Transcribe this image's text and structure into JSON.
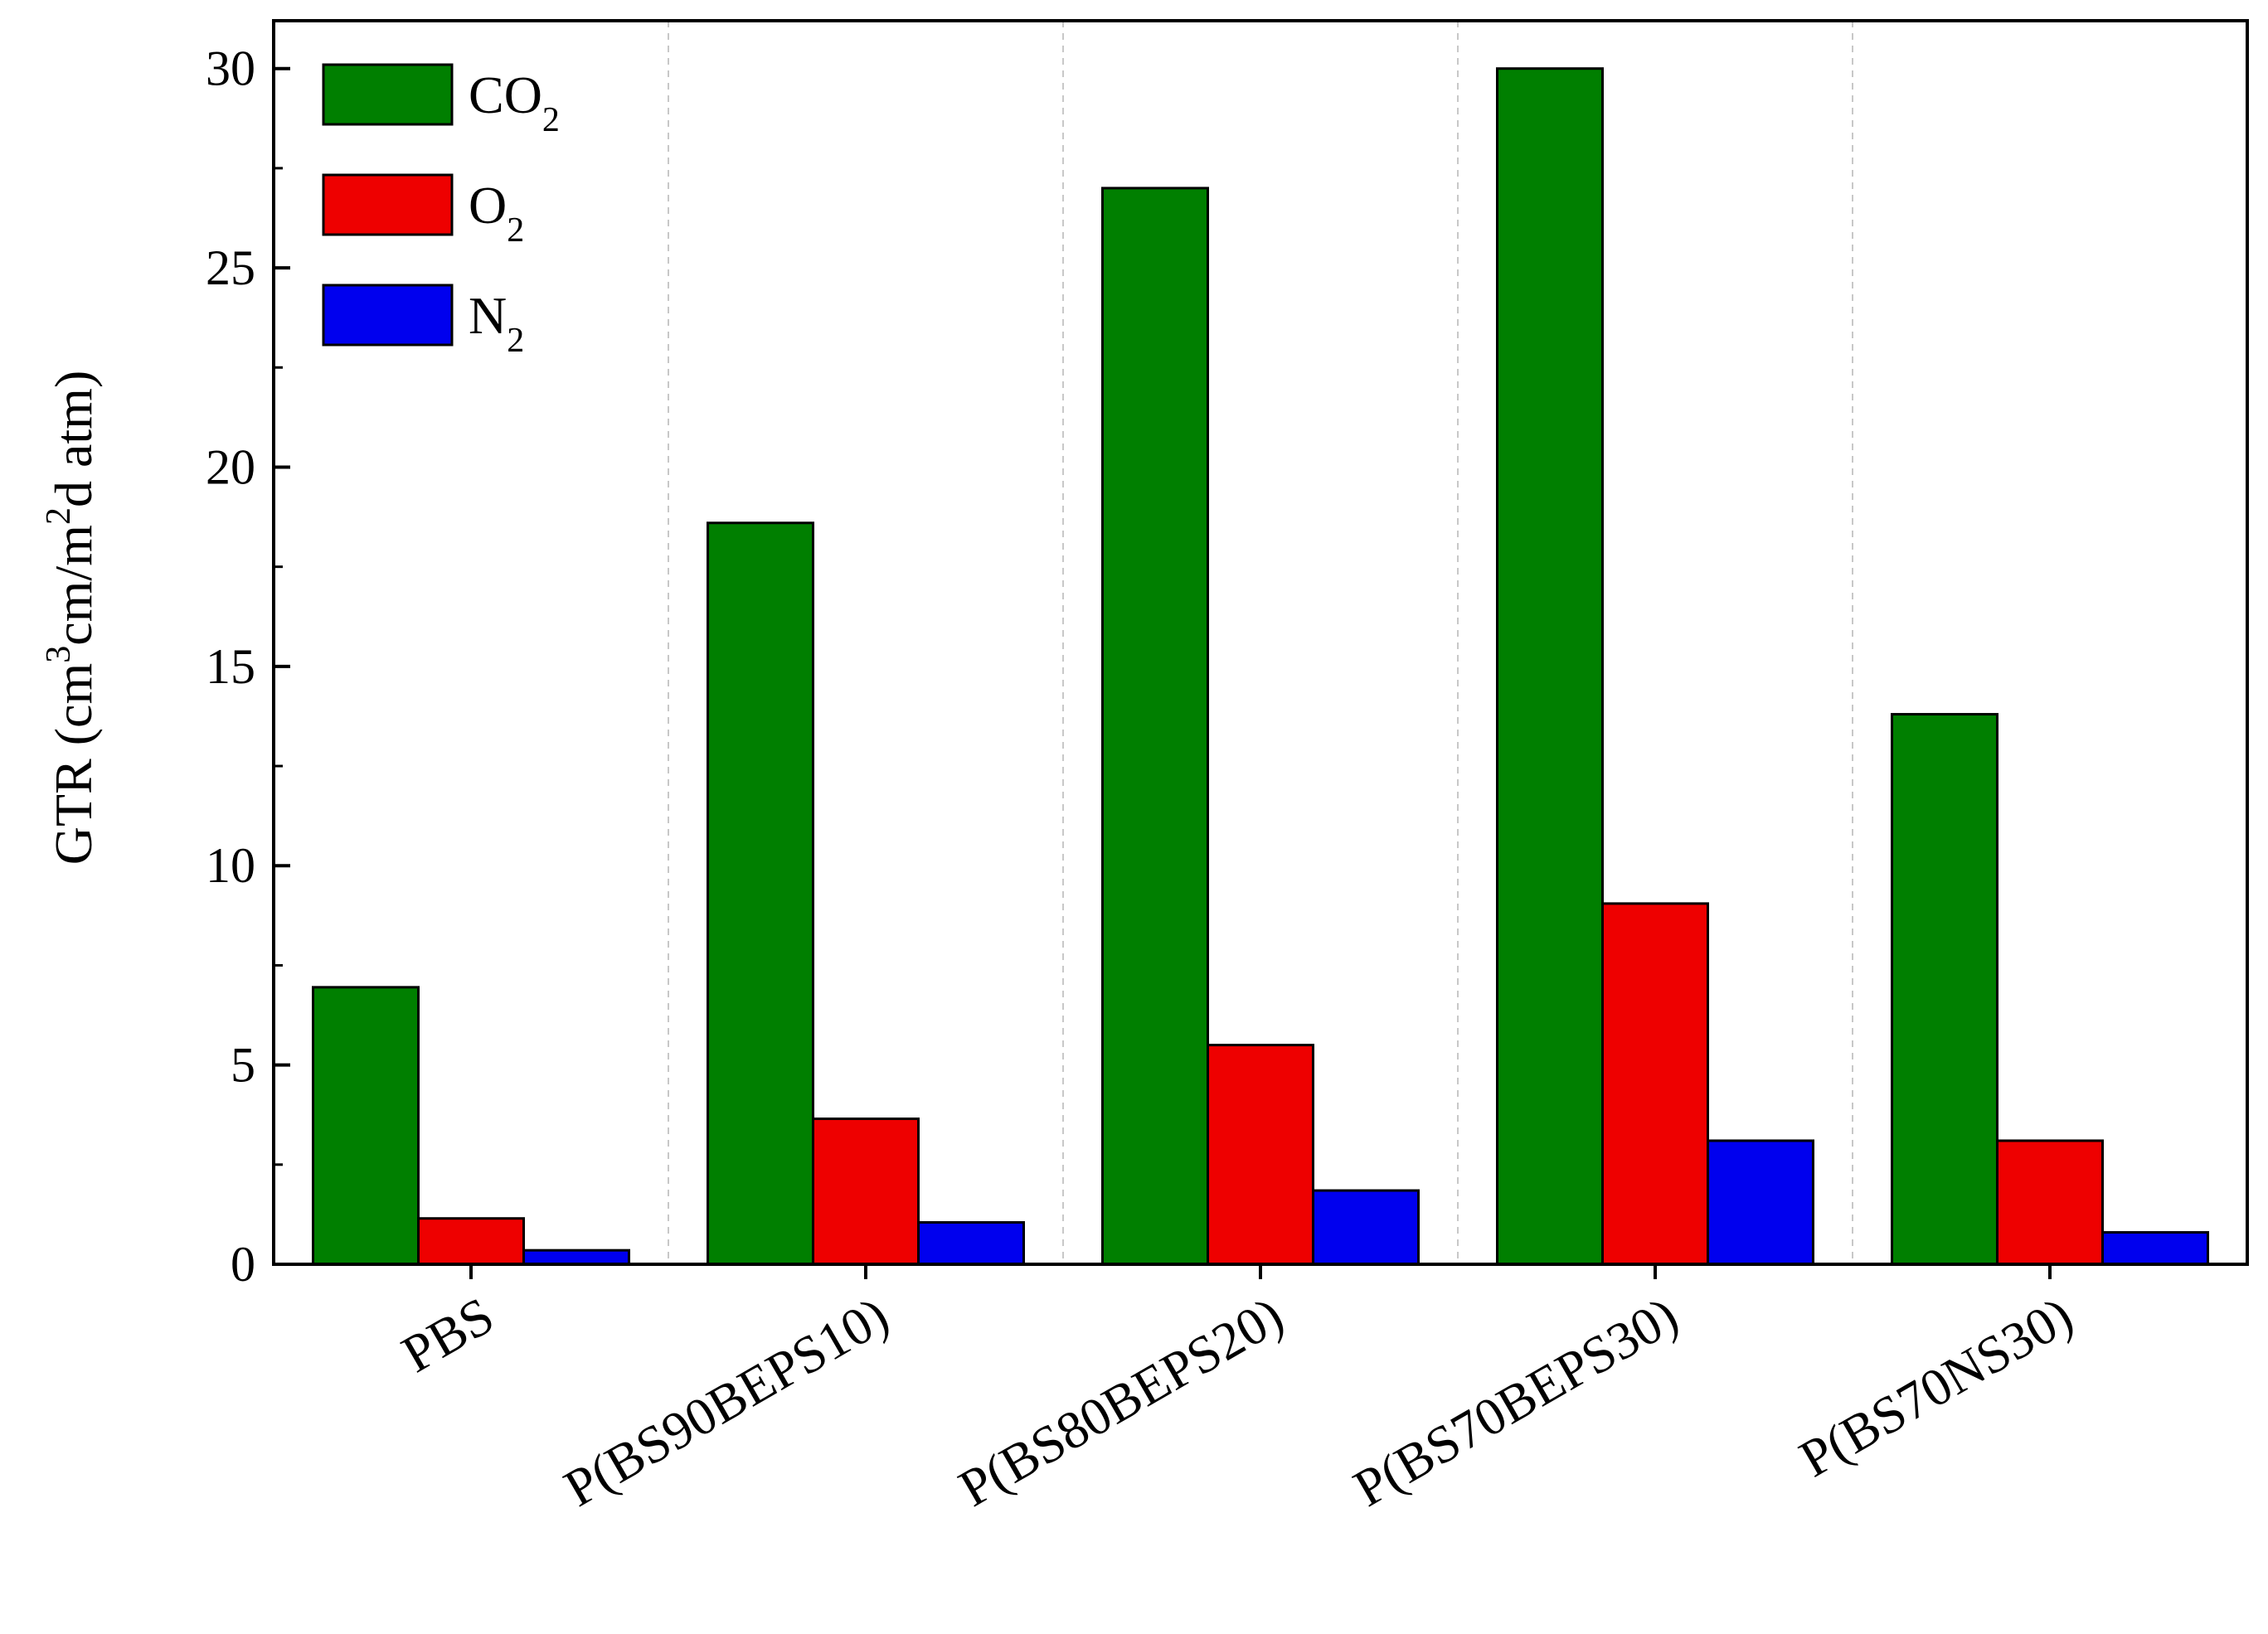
{
  "chart_data": {
    "type": "bar",
    "title": "",
    "xlabel": "",
    "ylabel": {
      "prefix": "GTR (cm",
      "sup1": "3",
      "middle": "cm/m",
      "sup2": "2",
      "suffix": "d atm)"
    },
    "categories": [
      "PBS",
      "P(BS90BEPS10)",
      "P(BS80BEPS20)",
      "P(BS70BEPS30)",
      "P(BS70NS30)"
    ],
    "series": [
      {
        "name": "CO2",
        "label_main": "CO",
        "label_sub": "2",
        "color": "#007f00",
        "values": [
          6.95,
          18.6,
          27.0,
          30.0,
          13.8
        ]
      },
      {
        "name": "O2",
        "label_main": "O",
        "label_sub": "2",
        "color": "#ee0000",
        "values": [
          1.15,
          3.65,
          5.5,
          9.05,
          3.1
        ]
      },
      {
        "name": "N2",
        "label_main": "N",
        "label_sub": "2",
        "color": "#0000ee",
        "values": [
          0.35,
          1.05,
          1.85,
          3.1,
          0.8
        ]
      }
    ],
    "ylim": [
      0,
      31.2
    ],
    "yticks": [
      0,
      5,
      10,
      15,
      20,
      25,
      30
    ],
    "grid": false,
    "category_separators": true,
    "legend_position": "top-left"
  }
}
